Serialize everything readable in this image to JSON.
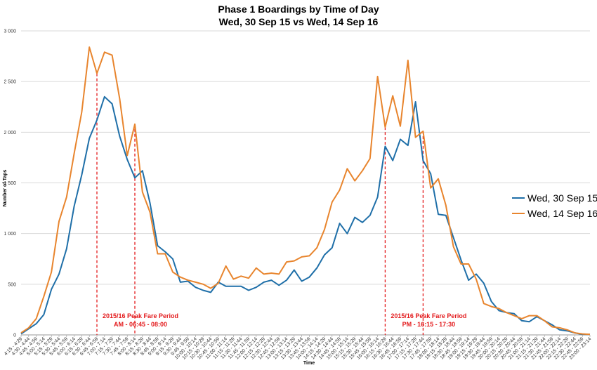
{
  "chart_data": {
    "type": "line",
    "title": "Phase 1 Boardings by Time of Day",
    "subtitle": "Wed, 30 Sep 15 vs Wed, 14 Sep 16",
    "xlabel": "Time",
    "ylabel": "Number of Taps",
    "ylim": [
      0,
      3000
    ],
    "yticks": [
      "0",
      "500",
      "1 000",
      "1 500",
      "2 000",
      "2 500",
      "3 000"
    ],
    "grid": true,
    "legend_position": "right",
    "categories": [
      "4:15 - 4:29",
      "4:30 - 4:44",
      "4:45 - 4:59",
      "5:00 - 5:14",
      "5:15 - 5:29",
      "5:30 - 5:44",
      "5:45 - 5:59",
      "6:00 - 6:14",
      "6:15 - 6:29",
      "6:30 - 6:44",
      "6:45 - 6:59",
      "7:00 - 7:14",
      "7:15 - 7:29",
      "7:30 - 7:44",
      "7:45 - 7:59",
      "8:00 - 8:14",
      "8:15 - 8:29",
      "8:30 - 8:44",
      "8:45 - 8:59",
      "9:00 - 9:14",
      "9:15 - 9:29",
      "9:30 - 9:44",
      "9:45 - 9:59",
      "10:00 - 10:14",
      "10:15 - 10:29",
      "10:30 - 10:44",
      "10:45 - 10:59",
      "11:00 - 11:14",
      "11:15 - 11:29",
      "11:30 - 11:44",
      "11:45 - 11:59",
      "12:00 - 12:14",
      "12:15 - 12:29",
      "12:30 - 12:44",
      "12:45 - 12:59",
      "13:00 - 13:14",
      "13:15 - 13:29",
      "13:30 - 13:44",
      "13:45 - 13:59",
      "14:00 - 14:14",
      "14:15 - 14:29",
      "14:30 - 14:44",
      "14:45 - 14:59",
      "15:00 - 15:14",
      "15:15 - 15:29",
      "15:30 - 15:44",
      "15:45 - 15:59",
      "16:00 - 16:14",
      "16:15 - 16:29",
      "16:30 - 16:44",
      "16:45 - 16:59",
      "17:00 - 17:14",
      "17:15 - 17:29",
      "17:30 - 17:44",
      "17:45 - 17:59",
      "18:00 - 18:14",
      "18:15 - 18:29",
      "18:30 - 18:44",
      "18:45 - 18:59",
      "19:00 - 19:14",
      "19:15 - 19:29",
      "19:30 - 19:44",
      "19:45 - 19:59",
      "20:00 - 20:14",
      "20:15 - 20:29",
      "20:30 - 20:44",
      "20:45 - 20:59",
      "21:00 - 21:14",
      "21:15 - 21:29",
      "21:30 - 21:44",
      "21:45 - 21:59",
      "22:00 - 22:14",
      "22:15 - 22:29",
      "22:30 - 22:44",
      "22:45 - 22:59",
      "23:00 - 23:14"
    ],
    "series": [
      {
        "name": "Wed, 30 Sep 15",
        "color": "#1f6fa8",
        "values": [
          10,
          60,
          110,
          200,
          450,
          600,
          850,
          1270,
          1580,
          1940,
          2120,
          2350,
          2280,
          1960,
          1730,
          1550,
          1620,
          1300,
          880,
          820,
          750,
          520,
          530,
          470,
          440,
          420,
          520,
          480,
          480,
          480,
          440,
          470,
          520,
          540,
          490,
          540,
          640,
          530,
          570,
          660,
          790,
          860,
          1100,
          1000,
          1160,
          1110,
          1180,
          1360,
          1860,
          1720,
          1930,
          1870,
          2300,
          1720,
          1590,
          1190,
          1180,
          960,
          740,
          540,
          600,
          510,
          330,
          240,
          220,
          210,
          140,
          130,
          180,
          140,
          100,
          50,
          40,
          20,
          5,
          5
        ]
      },
      {
        "name": "Wed, 14 Sep 16",
        "color": "#e8852e",
        "values": [
          20,
          70,
          160,
          380,
          620,
          1120,
          1360,
          1790,
          2200,
          2840,
          2580,
          2790,
          2760,
          2330,
          1770,
          2080,
          1410,
          1210,
          800,
          800,
          620,
          570,
          540,
          520,
          500,
          460,
          510,
          680,
          550,
          580,
          560,
          660,
          600,
          610,
          600,
          720,
          730,
          770,
          780,
          860,
          1040,
          1310,
          1430,
          1640,
          1520,
          1620,
          1740,
          2550,
          2050,
          2360,
          2060,
          2710,
          1950,
          2010,
          1450,
          1540,
          1280,
          870,
          700,
          700,
          550,
          310,
          280,
          260,
          220,
          190,
          160,
          190,
          190,
          140,
          80,
          70,
          50,
          20,
          10,
          5
        ]
      }
    ],
    "annotations": [
      {
        "x_index": 10,
        "lines": [
          "2015/16 Peak Fare Period",
          "AM - 06:45 - 08:00"
        ]
      },
      {
        "x_index": 15,
        "lines": [
          "2015/16 Peak Fare Period",
          "AM - 06:45 - 08:00"
        ]
      },
      {
        "x_index": 48,
        "lines": [
          "2015/16 Peak Fare Period",
          "PM - 16:15 - 17:30"
        ]
      },
      {
        "x_index": 53,
        "lines": [
          "2015/16 Peak Fare Period",
          "PM - 16:15 - 17:30"
        ]
      }
    ]
  }
}
